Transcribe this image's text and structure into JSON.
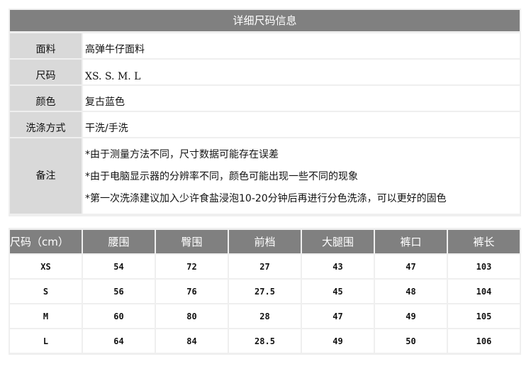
{
  "info": {
    "title": "详细尺码信息",
    "rows": [
      {
        "label": "面料",
        "value": "高弹牛仔面料"
      },
      {
        "label": "尺码",
        "value": "XS. S. M. L"
      },
      {
        "label": "颜色",
        "value": "复古蓝色"
      },
      {
        "label": "洗涤方式",
        "value": "干洗/手洗"
      }
    ],
    "notes_label": "备注",
    "notes": [
      "*由于测量方法不同，尺寸数据可能存在误差",
      "*由于电脑显示器的分辨率不同，颜色可能出现一些不同的现象",
      "*第一次洗涤建议加入少许食盐浸泡10-20分钟后再进行分色洗涤，可以更好的固色"
    ]
  },
  "sizes": {
    "headers": [
      "尺码（cm）",
      "腰围",
      "臀围",
      "前档",
      "大腿围",
      "裤口",
      "裤长"
    ],
    "rows": [
      [
        "XS",
        "54",
        "72",
        "27",
        "43",
        "47",
        "103"
      ],
      [
        "S",
        "56",
        "76",
        "27.5",
        "45",
        "48",
        "104"
      ],
      [
        "M",
        "60",
        "80",
        "28",
        "47",
        "49",
        "105"
      ],
      [
        "L",
        "64",
        "84",
        "28.5",
        "49",
        "50",
        "106"
      ]
    ]
  }
}
